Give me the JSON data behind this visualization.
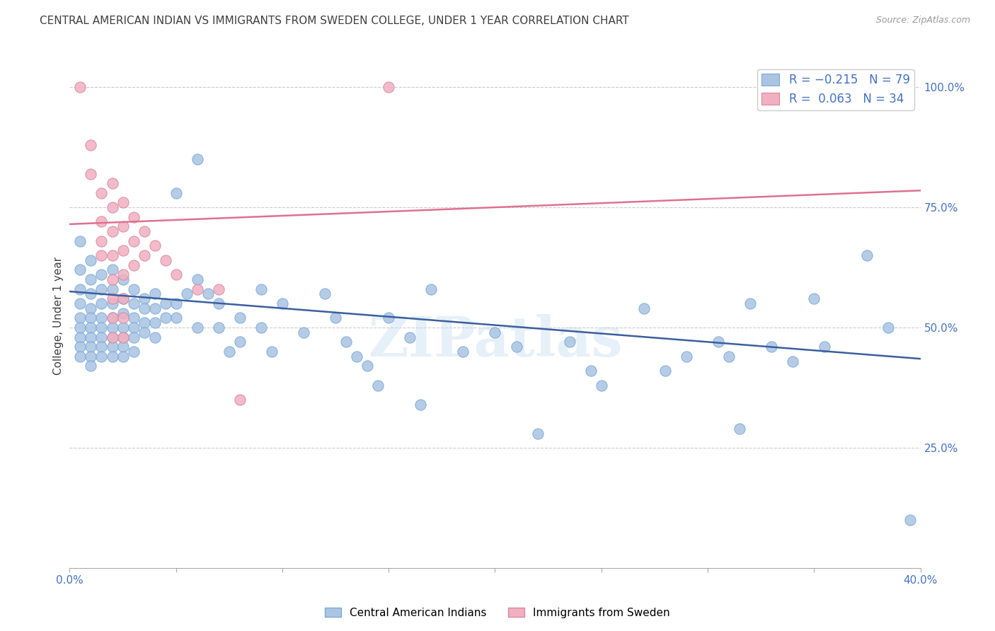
{
  "title": "CENTRAL AMERICAN INDIAN VS IMMIGRANTS FROM SWEDEN COLLEGE, UNDER 1 YEAR CORRELATION CHART",
  "source": "Source: ZipAtlas.com",
  "ylabel": "College, Under 1 year",
  "xlim": [
    0.0,
    0.4
  ],
  "ylim": [
    0.0,
    1.05
  ],
  "xticks": [
    0.0,
    0.05,
    0.1,
    0.15,
    0.2,
    0.25,
    0.3,
    0.35,
    0.4
  ],
  "ytick_right_labels": [
    "100.0%",
    "75.0%",
    "50.0%",
    "25.0%"
  ],
  "ytick_right_values": [
    1.0,
    0.75,
    0.5,
    0.25
  ],
  "color_blue": "#aac4e2",
  "color_pink": "#f2afc0",
  "line_blue": "#3a5fa0",
  "line_pink": "#e07090",
  "axis_label_color": "#4472c4",
  "title_color": "#404040",
  "watermark": "ZIPatlas",
  "marker_size": 120,
  "blue_scatter": [
    [
      0.005,
      0.68
    ],
    [
      0.005,
      0.62
    ],
    [
      0.005,
      0.58
    ],
    [
      0.005,
      0.55
    ],
    [
      0.005,
      0.52
    ],
    [
      0.005,
      0.5
    ],
    [
      0.005,
      0.48
    ],
    [
      0.005,
      0.46
    ],
    [
      0.005,
      0.44
    ],
    [
      0.01,
      0.64
    ],
    [
      0.01,
      0.6
    ],
    [
      0.01,
      0.57
    ],
    [
      0.01,
      0.54
    ],
    [
      0.01,
      0.52
    ],
    [
      0.01,
      0.5
    ],
    [
      0.01,
      0.48
    ],
    [
      0.01,
      0.46
    ],
    [
      0.01,
      0.44
    ],
    [
      0.01,
      0.42
    ],
    [
      0.015,
      0.61
    ],
    [
      0.015,
      0.58
    ],
    [
      0.015,
      0.55
    ],
    [
      0.015,
      0.52
    ],
    [
      0.015,
      0.5
    ],
    [
      0.015,
      0.48
    ],
    [
      0.015,
      0.46
    ],
    [
      0.015,
      0.44
    ],
    [
      0.02,
      0.62
    ],
    [
      0.02,
      0.58
    ],
    [
      0.02,
      0.55
    ],
    [
      0.02,
      0.52
    ],
    [
      0.02,
      0.5
    ],
    [
      0.02,
      0.48
    ],
    [
      0.02,
      0.46
    ],
    [
      0.02,
      0.44
    ],
    [
      0.025,
      0.6
    ],
    [
      0.025,
      0.56
    ],
    [
      0.025,
      0.53
    ],
    [
      0.025,
      0.5
    ],
    [
      0.025,
      0.48
    ],
    [
      0.025,
      0.46
    ],
    [
      0.025,
      0.44
    ],
    [
      0.03,
      0.58
    ],
    [
      0.03,
      0.55
    ],
    [
      0.03,
      0.52
    ],
    [
      0.03,
      0.5
    ],
    [
      0.03,
      0.48
    ],
    [
      0.03,
      0.45
    ],
    [
      0.035,
      0.56
    ],
    [
      0.035,
      0.54
    ],
    [
      0.035,
      0.51
    ],
    [
      0.035,
      0.49
    ],
    [
      0.04,
      0.57
    ],
    [
      0.04,
      0.54
    ],
    [
      0.04,
      0.51
    ],
    [
      0.04,
      0.48
    ],
    [
      0.045,
      0.55
    ],
    [
      0.045,
      0.52
    ],
    [
      0.05,
      0.78
    ],
    [
      0.05,
      0.55
    ],
    [
      0.05,
      0.52
    ],
    [
      0.055,
      0.57
    ],
    [
      0.06,
      0.85
    ],
    [
      0.06,
      0.6
    ],
    [
      0.06,
      0.5
    ],
    [
      0.065,
      0.57
    ],
    [
      0.07,
      0.55
    ],
    [
      0.07,
      0.5
    ],
    [
      0.075,
      0.45
    ],
    [
      0.08,
      0.52
    ],
    [
      0.08,
      0.47
    ],
    [
      0.09,
      0.58
    ],
    [
      0.09,
      0.5
    ],
    [
      0.095,
      0.45
    ],
    [
      0.1,
      0.55
    ],
    [
      0.11,
      0.49
    ],
    [
      0.12,
      0.57
    ],
    [
      0.125,
      0.52
    ],
    [
      0.13,
      0.47
    ],
    [
      0.135,
      0.44
    ],
    [
      0.14,
      0.42
    ],
    [
      0.145,
      0.38
    ],
    [
      0.15,
      0.52
    ],
    [
      0.16,
      0.48
    ],
    [
      0.165,
      0.34
    ],
    [
      0.17,
      0.58
    ],
    [
      0.185,
      0.45
    ],
    [
      0.2,
      0.49
    ],
    [
      0.21,
      0.46
    ],
    [
      0.22,
      0.28
    ],
    [
      0.235,
      0.47
    ],
    [
      0.245,
      0.41
    ],
    [
      0.25,
      0.38
    ],
    [
      0.27,
      0.54
    ],
    [
      0.28,
      0.41
    ],
    [
      0.29,
      0.44
    ],
    [
      0.305,
      0.47
    ],
    [
      0.31,
      0.44
    ],
    [
      0.315,
      0.29
    ],
    [
      0.32,
      0.55
    ],
    [
      0.33,
      0.46
    ],
    [
      0.34,
      0.43
    ],
    [
      0.35,
      0.56
    ],
    [
      0.355,
      0.46
    ],
    [
      0.375,
      0.65
    ],
    [
      0.385,
      0.5
    ],
    [
      0.395,
      0.1
    ]
  ],
  "pink_scatter": [
    [
      0.005,
      1.0
    ],
    [
      0.01,
      0.88
    ],
    [
      0.01,
      0.82
    ],
    [
      0.015,
      0.78
    ],
    [
      0.015,
      0.72
    ],
    [
      0.015,
      0.68
    ],
    [
      0.015,
      0.65
    ],
    [
      0.02,
      0.8
    ],
    [
      0.02,
      0.75
    ],
    [
      0.02,
      0.7
    ],
    [
      0.02,
      0.65
    ],
    [
      0.02,
      0.6
    ],
    [
      0.02,
      0.56
    ],
    [
      0.02,
      0.52
    ],
    [
      0.02,
      0.48
    ],
    [
      0.025,
      0.76
    ],
    [
      0.025,
      0.71
    ],
    [
      0.025,
      0.66
    ],
    [
      0.025,
      0.61
    ],
    [
      0.025,
      0.56
    ],
    [
      0.025,
      0.52
    ],
    [
      0.025,
      0.48
    ],
    [
      0.03,
      0.73
    ],
    [
      0.03,
      0.68
    ],
    [
      0.03,
      0.63
    ],
    [
      0.035,
      0.7
    ],
    [
      0.035,
      0.65
    ],
    [
      0.04,
      0.67
    ],
    [
      0.045,
      0.64
    ],
    [
      0.05,
      0.61
    ],
    [
      0.06,
      0.58
    ],
    [
      0.07,
      0.58
    ],
    [
      0.08,
      0.35
    ],
    [
      0.15,
      1.0
    ]
  ],
  "blue_line_x": [
    0.0,
    0.4
  ],
  "blue_line_y": [
    0.575,
    0.435
  ],
  "pink_line_x": [
    0.0,
    0.4
  ],
  "pink_line_y": [
    0.715,
    0.785
  ]
}
